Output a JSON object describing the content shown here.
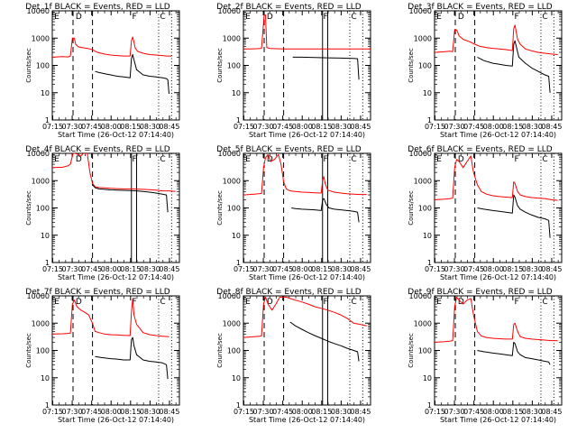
{
  "figure": {
    "xlabel": "Start Time (26-Oct-12 07:14:40)",
    "ylabel": "Counts/sec",
    "x_tick_labels": [
      "07:15",
      "07:30",
      "07:45",
      "08:00",
      "08:15",
      "08:30",
      "08:45"
    ],
    "y_tick_labels": [
      "1",
      "10",
      "100",
      "1000",
      "10000"
    ],
    "marker_labels": [
      "E",
      "D",
      "F",
      "C"
    ],
    "colors": {
      "events": "#000000",
      "lld": "#ff0000",
      "background": "#ffffff",
      "axes": "#000000"
    }
  },
  "chart_data": [
    {
      "type": "line",
      "title": "Det_1f BLACK = Events, RED = LLD",
      "x_unit": "minutes since 07:14:40",
      "xlim": [
        0,
        98
      ],
      "ylim": [
        1,
        10000
      ],
      "y_scale": "log",
      "vlines_dashed": [
        16,
        31
      ],
      "vlines_solid": [],
      "vlines_dotted": [
        82,
        92
      ],
      "series": [
        {
          "name": "LLD",
          "color": "#ff0000",
          "x": [
            0,
            8,
            12,
            14,
            15.5,
            17,
            18,
            20,
            22,
            24,
            27,
            29,
            31,
            33,
            35,
            40,
            45,
            50,
            55,
            60,
            61,
            62,
            63,
            64,
            66,
            70,
            75,
            80,
            85,
            88,
            92
          ],
          "y": [
            200,
            210,
            205,
            220,
            1000,
            1000,
            600,
            480,
            460,
            440,
            420,
            400,
            380,
            330,
            300,
            260,
            240,
            230,
            220,
            220,
            800,
            1100,
            700,
            420,
            320,
            280,
            250,
            240,
            230,
            220,
            220
          ]
        },
        {
          "name": "Events",
          "color": "#000000",
          "x": [
            33,
            36,
            40,
            45,
            50,
            55,
            60,
            61,
            62,
            63,
            65,
            70,
            75,
            80,
            85,
            88,
            89,
            90
          ],
          "y": [
            60,
            55,
            50,
            45,
            40,
            38,
            35,
            180,
            250,
            160,
            70,
            45,
            40,
            38,
            35,
            33,
            30,
            9
          ]
        }
      ]
    },
    {
      "type": "line",
      "title": "Det_2f BLACK = Events, RED = LLD",
      "x_unit": "minutes since 07:14:40",
      "xlim": [
        0,
        98
      ],
      "ylim": [
        1,
        10000
      ],
      "y_scale": "log",
      "vlines_dashed": [
        16,
        31
      ],
      "vlines_solid": [
        61,
        65
      ],
      "vlines_dotted": [
        82,
        92
      ],
      "series": [
        {
          "name": "LLD",
          "color": "#ff0000",
          "x": [
            0,
            5,
            10,
            14,
            16,
            17,
            18,
            20,
            25,
            31,
            35,
            45,
            55,
            65,
            75,
            85,
            95,
            98
          ],
          "y": [
            400,
            400,
            410,
            420,
            7000,
            7000,
            450,
            420,
            410,
            400,
            400,
            400,
            400,
            400,
            400,
            400,
            400,
            400
          ]
        },
        {
          "name": "Events",
          "color": "#000000",
          "x": [
            38,
            45,
            55,
            65,
            75,
            85,
            88,
            89
          ],
          "y": [
            200,
            200,
            195,
            190,
            185,
            180,
            175,
            30
          ]
        }
      ]
    },
    {
      "type": "line",
      "title": "Det_3f BLACK = Events, RED = LLD",
      "x_unit": "minutes since 07:14:40",
      "xlim": [
        0,
        98
      ],
      "ylim": [
        1,
        10000
      ],
      "y_scale": "log",
      "vlines_dashed": [
        16,
        31
      ],
      "vlines_solid": [],
      "vlines_dotted": [
        82,
        92
      ],
      "series": [
        {
          "name": "LLD",
          "color": "#ff0000",
          "x": [
            0,
            8,
            12,
            14,
            15.5,
            17,
            19,
            22,
            25,
            28,
            31,
            35,
            40,
            45,
            50,
            55,
            60,
            61,
            62,
            64,
            66,
            70,
            75,
            80,
            85,
            90,
            95
          ],
          "y": [
            300,
            320,
            330,
            320,
            2000,
            2000,
            1200,
            900,
            800,
            700,
            600,
            500,
            450,
            420,
            400,
            380,
            350,
            2200,
            3000,
            900,
            600,
            400,
            340,
            300,
            280,
            260,
            250
          ]
        },
        {
          "name": "Events",
          "color": "#000000",
          "x": [
            33,
            38,
            45,
            50,
            55,
            60,
            61,
            62,
            63,
            65,
            70,
            75,
            80,
            85,
            88,
            89
          ],
          "y": [
            200,
            150,
            120,
            110,
            100,
            95,
            600,
            800,
            500,
            200,
            120,
            80,
            60,
            45,
            40,
            10
          ]
        }
      ]
    },
    {
      "type": "line",
      "title": "Det_4f BLACK = Events, RED = LLD",
      "x_unit": "minutes since 07:14:40",
      "xlim": [
        0,
        98
      ],
      "ylim": [
        1,
        10000
      ],
      "y_scale": "log",
      "vlines_dashed": [
        31
      ],
      "vlines_solid": [
        61,
        65
      ],
      "vlines_dotted": [
        82,
        92
      ],
      "series": [
        {
          "name": "LLD",
          "color": "#ff0000",
          "x": [
            0,
            8,
            12,
            14,
            16,
            18,
            20,
            22,
            24,
            27,
            29,
            31,
            33,
            36,
            40,
            45,
            50,
            55,
            60,
            65,
            70,
            75,
            80,
            85,
            90,
            95
          ],
          "y": [
            3000,
            3100,
            3500,
            4000,
            10000,
            10000,
            9000,
            8000,
            10000,
            10000,
            2000,
            800,
            600,
            560,
            540,
            520,
            510,
            500,
            500,
            490,
            480,
            470,
            450,
            420,
            420,
            400
          ]
        },
        {
          "name": "Events",
          "color": "#000000",
          "x": [
            31,
            33,
            36,
            40,
            45,
            50,
            55,
            60,
            65,
            70,
            75,
            80,
            85,
            88,
            89
          ],
          "y": [
            700,
            550,
            500,
            480,
            460,
            450,
            440,
            430,
            420,
            400,
            380,
            350,
            320,
            300,
            70
          ]
        }
      ]
    },
    {
      "type": "line",
      "title": "Det_5f BLACK = Events, RED = LLD",
      "x_unit": "minutes since 07:14:40",
      "xlim": [
        0,
        98
      ],
      "ylim": [
        1,
        10000
      ],
      "y_scale": "log",
      "vlines_dashed": [
        16,
        31
      ],
      "vlines_solid": [
        61,
        65
      ],
      "vlines_dotted": [
        82,
        92
      ],
      "series": [
        {
          "name": "LLD",
          "color": "#ff0000",
          "x": [
            0,
            8,
            12,
            14,
            15.5,
            17,
            19,
            21,
            24,
            27,
            29,
            31,
            33,
            36,
            40,
            45,
            50,
            55,
            60,
            61,
            62,
            63,
            65,
            70,
            75,
            80,
            85,
            90,
            95
          ],
          "y": [
            300,
            320,
            330,
            340,
            3000,
            7000,
            9000,
            5000,
            6000,
            9000,
            4000,
            900,
            500,
            420,
            400,
            380,
            370,
            360,
            350,
            1000,
            1400,
            800,
            450,
            380,
            350,
            330,
            320,
            310,
            310
          ]
        },
        {
          "name": "Events",
          "color": "#000000",
          "x": [
            37,
            40,
            45,
            50,
            55,
            60,
            61,
            62,
            64,
            66,
            70,
            75,
            80,
            85,
            88,
            89
          ],
          "y": [
            100,
            95,
            90,
            88,
            85,
            80,
            200,
            220,
            130,
            100,
            90,
            85,
            80,
            75,
            70,
            30
          ]
        }
      ]
    },
    {
      "type": "line",
      "title": "Det_6f BLACK = Events, RED = LLD",
      "x_unit": "minutes since 07:14:40",
      "xlim": [
        0,
        98
      ],
      "ylim": [
        1,
        10000
      ],
      "y_scale": "log",
      "vlines_dashed": [
        16,
        31
      ],
      "vlines_solid": [],
      "vlines_dotted": [
        82,
        92
      ],
      "series": [
        {
          "name": "LLD",
          "color": "#ff0000",
          "x": [
            0,
            8,
            12,
            14,
            15.5,
            17,
            19,
            22,
            25,
            28,
            30,
            33,
            36,
            40,
            45,
            50,
            55,
            60,
            61,
            62,
            64,
            66,
            70,
            75,
            80,
            85,
            90,
            95
          ],
          "y": [
            200,
            210,
            220,
            230,
            3000,
            6000,
            5000,
            3000,
            5000,
            8000,
            2000,
            700,
            400,
            320,
            280,
            260,
            250,
            240,
            900,
            800,
            400,
            300,
            260,
            240,
            230,
            220,
            200,
            190
          ]
        },
        {
          "name": "Events",
          "color": "#000000",
          "x": [
            33,
            38,
            45,
            50,
            55,
            60,
            61,
            62,
            64,
            66,
            70,
            75,
            80,
            85,
            88,
            89
          ],
          "y": [
            100,
            90,
            80,
            75,
            70,
            65,
            300,
            250,
            120,
            90,
            70,
            55,
            45,
            40,
            35,
            8
          ]
        }
      ]
    },
    {
      "type": "line",
      "title": "Det_7f BLACK = Events, RED = LLD",
      "x_unit": "minutes since 07:14:40",
      "xlim": [
        0,
        98
      ],
      "ylim": [
        1,
        10000
      ],
      "y_scale": "log",
      "vlines_dashed": [
        16,
        31
      ],
      "vlines_solid": [],
      "vlines_dotted": [
        82,
        92
      ],
      "series": [
        {
          "name": "LLD",
          "color": "#ff0000",
          "x": [
            0,
            8,
            12,
            14,
            15.5,
            17,
            19,
            22,
            25,
            28,
            31,
            33,
            36,
            40,
            45,
            50,
            55,
            60,
            61,
            62,
            63,
            65,
            70,
            75,
            80,
            85,
            90
          ],
          "y": [
            400,
            410,
            420,
            430,
            5000,
            7000,
            4000,
            3000,
            2500,
            2000,
            1000,
            500,
            450,
            400,
            380,
            370,
            360,
            350,
            2500,
            8000,
            2000,
            900,
            450,
            380,
            350,
            330,
            320
          ]
        },
        {
          "name": "Events",
          "color": "#000000",
          "x": [
            33,
            38,
            45,
            50,
            55,
            60,
            61,
            62,
            63,
            65,
            70,
            75,
            80,
            85,
            88,
            89
          ],
          "y": [
            60,
            55,
            50,
            48,
            45,
            45,
            250,
            300,
            150,
            70,
            45,
            40,
            38,
            35,
            30,
            9
          ]
        }
      ]
    },
    {
      "type": "line",
      "title": "Det_8f BLACK = Events, RED = LLD",
      "x_unit": "minutes since 07:14:40",
      "xlim": [
        0,
        98
      ],
      "ylim": [
        1,
        10000
      ],
      "y_scale": "log",
      "vlines_dashed": [
        16,
        31
      ],
      "vlines_solid": [
        61,
        65
      ],
      "vlines_dotted": [
        82,
        92
      ],
      "series": [
        {
          "name": "LLD",
          "color": "#ff0000",
          "x": [
            0,
            8,
            12,
            14,
            15.5,
            17,
            19,
            22,
            25,
            28,
            31,
            33,
            36,
            40,
            45,
            50,
            55,
            60,
            65,
            70,
            75,
            80,
            85,
            90,
            95
          ],
          "y": [
            300,
            320,
            330,
            340,
            5000,
            9000,
            5000,
            3000,
            5000,
            9000,
            9000,
            9000,
            8000,
            7000,
            6000,
            5000,
            4000,
            3500,
            3000,
            2500,
            2000,
            1500,
            1000,
            900,
            800
          ]
        },
        {
          "name": "Events",
          "color": "#000000",
          "x": [
            36,
            40,
            45,
            50,
            55,
            60,
            65,
            70,
            75,
            80,
            85,
            88,
            89
          ],
          "y": [
            1100,
            800,
            600,
            450,
            350,
            280,
            220,
            180,
            150,
            120,
            100,
            90,
            40
          ]
        }
      ]
    },
    {
      "type": "line",
      "title": "Det_9f BLACK = Events, RED = LLD",
      "x_unit": "minutes since 07:14:40",
      "xlim": [
        0,
        98
      ],
      "ylim": [
        1,
        10000
      ],
      "y_scale": "log",
      "vlines_dashed": [
        16,
        31
      ],
      "vlines_solid": [],
      "vlines_dotted": [
        82,
        92
      ],
      "series": [
        {
          "name": "LLD",
          "color": "#ff0000",
          "x": [
            0,
            8,
            12,
            14,
            15.5,
            17,
            19,
            22,
            25,
            28,
            30,
            33,
            36,
            40,
            45,
            50,
            55,
            60,
            61,
            62,
            64,
            66,
            70,
            75,
            80,
            85,
            90,
            95
          ],
          "y": [
            200,
            210,
            220,
            230,
            4000,
            9000,
            7000,
            5000,
            7000,
            8000,
            2000,
            500,
            340,
            300,
            280,
            270,
            260,
            260,
            900,
            1000,
            500,
            320,
            280,
            260,
            250,
            240,
            230,
            230
          ]
        },
        {
          "name": "Events",
          "color": "#000000",
          "x": [
            33,
            38,
            45,
            50,
            55,
            60,
            61,
            62,
            64,
            66,
            70,
            75,
            80,
            85,
            88,
            89
          ],
          "y": [
            100,
            90,
            80,
            75,
            70,
            65,
            200,
            180,
            90,
            70,
            55,
            50,
            45,
            40,
            38,
            30
          ]
        }
      ]
    }
  ]
}
